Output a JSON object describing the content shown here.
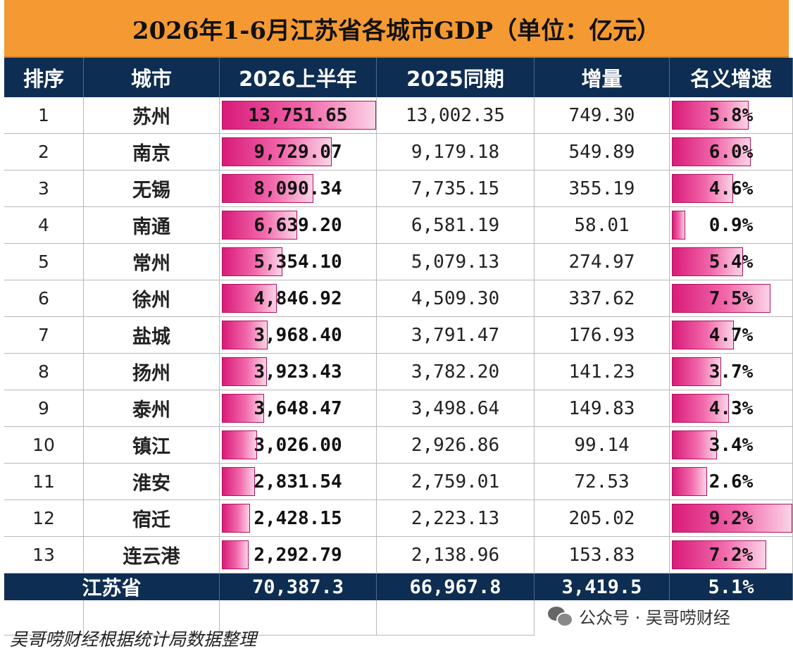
{
  "title": "2026年1-6月江苏省各城市GDP（单位：亿元）",
  "headers": [
    "排序",
    "城市",
    "2026上半年",
    "2025同期",
    "增量",
    "名义增速"
  ],
  "rows": [
    {
      "rank": "1",
      "city": "苏州",
      "h1_2026": "13,751.65",
      "h1_2025": "13,002.35",
      "increase": "749.30",
      "growth": "5.8%"
    },
    {
      "rank": "2",
      "city": "南京",
      "h1_2026": "9,729.07",
      "h1_2025": "9,179.18",
      "increase": "549.89",
      "growth": "6.0%"
    },
    {
      "rank": "3",
      "city": "无锡",
      "h1_2026": "8,090.34",
      "h1_2025": "7,735.15",
      "increase": "355.19",
      "growth": "4.6%"
    },
    {
      "rank": "4",
      "city": "南通",
      "h1_2026": "6,639.20",
      "h1_2025": "6,581.19",
      "increase": "58.01",
      "growth": "0.9%"
    },
    {
      "rank": "5",
      "city": "常州",
      "h1_2026": "5,354.10",
      "h1_2025": "5,079.13",
      "increase": "274.97",
      "growth": "5.4%"
    },
    {
      "rank": "6",
      "city": "徐州",
      "h1_2026": "4,846.92",
      "h1_2025": "4,509.30",
      "increase": "337.62",
      "growth": "7.5%"
    },
    {
      "rank": "7",
      "city": "盐城",
      "h1_2026": "3,968.40",
      "h1_2025": "3,791.47",
      "increase": "176.93",
      "growth": "4.7%"
    },
    {
      "rank": "8",
      "city": "扬州",
      "h1_2026": "3,923.43",
      "h1_2025": "3,782.20",
      "increase": "141.23",
      "growth": "3.7%"
    },
    {
      "rank": "9",
      "city": "泰州",
      "h1_2026": "3,648.47",
      "h1_2025": "3,498.64",
      "increase": "149.83",
      "growth": "4.3%"
    },
    {
      "rank": "10",
      "city": "镇江",
      "h1_2026": "3,026.00",
      "h1_2025": "2,926.86",
      "increase": "99.14",
      "growth": "3.4%"
    },
    {
      "rank": "11",
      "city": "淮安",
      "h1_2026": "2,831.54",
      "h1_2025": "2,759.01",
      "increase": "72.53",
      "growth": "2.6%"
    },
    {
      "rank": "12",
      "city": "宿迁",
      "h1_2026": "2,428.15",
      "h1_2025": "2,223.13",
      "increase": "205.02",
      "growth": "9.2%"
    },
    {
      "rank": "13",
      "city": "连云港",
      "h1_2026": "2,292.79",
      "h1_2025": "2,138.96",
      "increase": "153.83",
      "growth": "7.2%"
    }
  ],
  "total": {
    "label": "江苏省",
    "h1_2026": "70,387.3",
    "h1_2025": "66,967.8",
    "increase": "3,419.5",
    "growth": "5.1%"
  },
  "bar_scale": {
    "gdp_max": 13751.65,
    "growth_max": 9.2
  },
  "bar_color": "#e0409a",
  "header_color": "#0e2d52",
  "title_color": "#f59a32",
  "wechat": {
    "icon": "wechat-icon",
    "text": "公众号 · 吴哥唠财经"
  },
  "footer": "吴哥唠财经根据统计局数据整理"
}
